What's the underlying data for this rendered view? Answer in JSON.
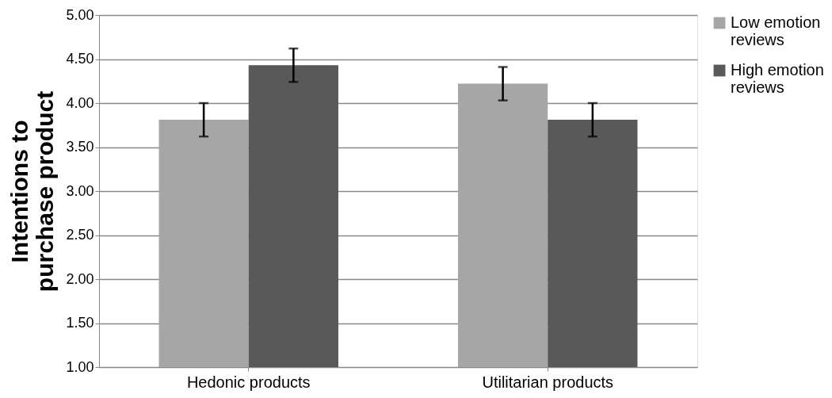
{
  "chart_data": {
    "type": "bar",
    "ylabel": "Intentions to purchase product",
    "categories": [
      "Hedonic products",
      "Utilitarian products"
    ],
    "series": [
      {
        "name": "Low emotion reviews",
        "color": "#a6a6a6",
        "values": [
          3.81,
          4.22
        ],
        "errors": [
          0.19,
          0.19
        ]
      },
      {
        "name": "High emotion reviews",
        "color": "#595959",
        "values": [
          4.43,
          3.81
        ],
        "errors": [
          0.19,
          0.19
        ]
      }
    ],
    "ylim": [
      1.0,
      5.0
    ],
    "yticks": [
      {
        "value": 1.0,
        "label": "1.00"
      },
      {
        "value": 1.5,
        "label": "1.50"
      },
      {
        "value": 2.0,
        "label": "2.00"
      },
      {
        "value": 2.5,
        "label": "2.50"
      },
      {
        "value": 3.0,
        "label": "3.00"
      },
      {
        "value": 3.5,
        "label": "3.50"
      },
      {
        "value": 4.0,
        "label": "4.00"
      },
      {
        "value": 4.5,
        "label": "4.50"
      },
      {
        "value": 5.0,
        "label": "5.00"
      }
    ],
    "grid": "y",
    "legend": "right"
  }
}
